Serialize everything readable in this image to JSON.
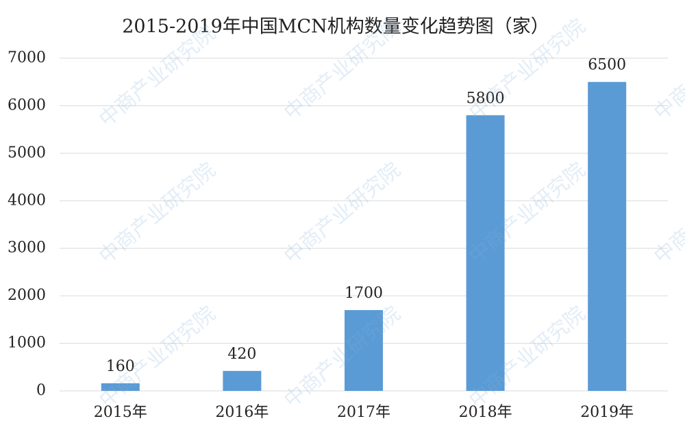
{
  "chart_data": {
    "type": "bar",
    "title": "2015-2019年中国MCN机构数量变化趋势图（家）",
    "categories": [
      "2015年",
      "2016年",
      "2017年",
      "2018年",
      "2019年"
    ],
    "values": [
      160,
      420,
      1700,
      5800,
      6500
    ],
    "color": "#5b9bd5",
    "ylim": [
      0,
      7000
    ],
    "yticks": [
      0,
      1000,
      2000,
      3000,
      4000,
      5000,
      6000,
      7000
    ],
    "grid": true,
    "watermark": "中商产业研究院"
  }
}
